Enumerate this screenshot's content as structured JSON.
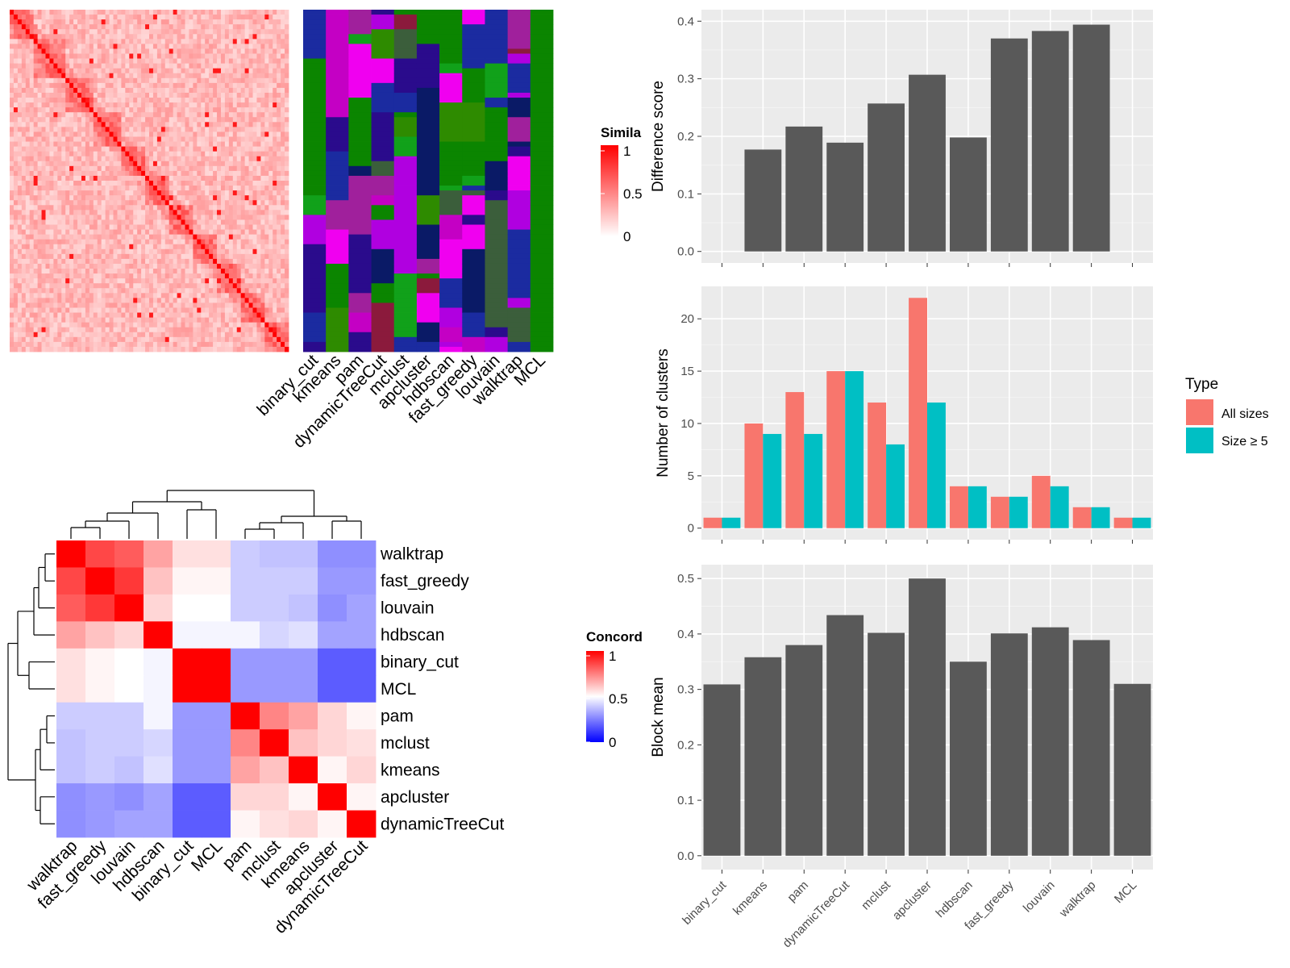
{
  "methods": [
    "binary_cut",
    "kmeans",
    "pam",
    "dynamicTreeCut",
    "mclust",
    "apcluster",
    "hdbscan",
    "fast_greedy",
    "louvain",
    "walktrap",
    "MCL"
  ],
  "heatmap_order": [
    "walktrap",
    "fast_greedy",
    "louvain",
    "hdbscan",
    "binary_cut",
    "MCL",
    "pam",
    "mclust",
    "kmeans",
    "apcluster",
    "dynamicTreeCut"
  ],
  "legends": {
    "similarity": {
      "title": "Simila",
      "ticks": [
        "1",
        "0.5",
        "0"
      ]
    },
    "concordance": {
      "title": "Concord",
      "ticks": [
        "1",
        "0.5",
        "0"
      ]
    },
    "type": {
      "title": "Type",
      "items": [
        "All sizes",
        "Size ≥ 5"
      ]
    }
  },
  "colors": {
    "bar_gray": "#595959",
    "all_sizes": "#F8766D",
    "size_ge5": "#00BFC4",
    "panel_bg": "#EBEBEB",
    "sim_high": "#FF0000",
    "sim_low": "#FFFFFF",
    "conc_low": "#0000FF"
  },
  "chart_data": [
    {
      "type": "heatmap",
      "title": "",
      "legend_title": "Similarity",
      "color_range": [
        0,
        1
      ],
      "note": "similarity matrix of terms with diagonal blocks, plus cluster membership columns per method"
    },
    {
      "type": "heatmap",
      "legend_title": "Concordance",
      "rows": [
        "walktrap",
        "fast_greedy",
        "louvain",
        "hdbscan",
        "binary_cut",
        "MCL",
        "pam",
        "mclust",
        "kmeans",
        "apcluster",
        "dynamicTreeCut"
      ],
      "cols": [
        "walktrap",
        "fast_greedy",
        "louvain",
        "hdbscan",
        "binary_cut",
        "MCL",
        "pam",
        "mclust",
        "kmeans",
        "apcluster",
        "dynamicTreeCut"
      ],
      "values": [
        [
          1.0,
          0.86,
          0.82,
          0.68,
          0.56,
          0.56,
          0.4,
          0.38,
          0.38,
          0.28,
          0.28
        ],
        [
          0.86,
          1.0,
          0.89,
          0.62,
          0.52,
          0.52,
          0.4,
          0.4,
          0.4,
          0.3,
          0.3
        ],
        [
          0.82,
          0.89,
          1.0,
          0.58,
          0.5,
          0.5,
          0.4,
          0.4,
          0.38,
          0.28,
          0.32
        ],
        [
          0.68,
          0.62,
          0.58,
          1.0,
          0.48,
          0.48,
          0.48,
          0.42,
          0.44,
          0.32,
          0.32
        ],
        [
          0.56,
          0.52,
          0.5,
          0.48,
          1.0,
          1.0,
          0.3,
          0.3,
          0.3,
          0.18,
          0.18
        ],
        [
          0.56,
          0.52,
          0.5,
          0.48,
          1.0,
          1.0,
          0.3,
          0.3,
          0.3,
          0.18,
          0.18
        ],
        [
          0.4,
          0.4,
          0.4,
          0.48,
          0.3,
          0.3,
          1.0,
          0.74,
          0.68,
          0.58,
          0.52
        ],
        [
          0.38,
          0.4,
          0.4,
          0.42,
          0.3,
          0.3,
          0.74,
          1.0,
          0.62,
          0.58,
          0.56
        ],
        [
          0.38,
          0.4,
          0.38,
          0.44,
          0.3,
          0.3,
          0.68,
          0.62,
          1.0,
          0.52,
          0.58
        ],
        [
          0.28,
          0.3,
          0.28,
          0.32,
          0.18,
          0.18,
          0.58,
          0.58,
          0.52,
          1.0,
          0.52
        ],
        [
          0.28,
          0.3,
          0.32,
          0.32,
          0.18,
          0.18,
          0.52,
          0.56,
          0.58,
          0.52,
          1.0
        ]
      ],
      "color_range": [
        0,
        1
      ]
    },
    {
      "type": "bar",
      "categories": [
        "binary_cut",
        "kmeans",
        "pam",
        "dynamicTreeCut",
        "mclust",
        "apcluster",
        "hdbscan",
        "fast_greedy",
        "louvain",
        "walktrap",
        "MCL"
      ],
      "values": [
        0.0,
        0.177,
        0.217,
        0.189,
        0.257,
        0.307,
        0.198,
        0.37,
        0.383,
        0.394,
        0.0
      ],
      "ylabel": "Difference score",
      "ylim": [
        -0.02,
        0.42
      ],
      "yticks": [
        0.0,
        0.1,
        0.2,
        0.3,
        0.4
      ],
      "yticklabels": [
        "0.0",
        "0.1",
        "0.2",
        "0.3",
        "0.4"
      ]
    },
    {
      "type": "bar",
      "categories": [
        "binary_cut",
        "kmeans",
        "pam",
        "dynamicTreeCut",
        "mclust",
        "apcluster",
        "hdbscan",
        "fast_greedy",
        "louvain",
        "walktrap",
        "MCL"
      ],
      "series": [
        {
          "name": "All sizes",
          "values": [
            1,
            10,
            13,
            15,
            12,
            22,
            4,
            3,
            5,
            2,
            1
          ]
        },
        {
          "name": "Size ≥ 5",
          "values": [
            1,
            9,
            9,
            15,
            8,
            12,
            4,
            3,
            4,
            2,
            1
          ]
        }
      ],
      "ylabel": "Number of clusters",
      "ylim": [
        -1.1,
        23.1
      ],
      "yticks": [
        0,
        5,
        10,
        15,
        20
      ],
      "yticklabels": [
        "0",
        "5",
        "10",
        "15",
        "20"
      ],
      "legend": "right"
    },
    {
      "type": "bar",
      "categories": [
        "binary_cut",
        "kmeans",
        "pam",
        "dynamicTreeCut",
        "mclust",
        "apcluster",
        "hdbscan",
        "fast_greedy",
        "louvain",
        "walktrap",
        "MCL"
      ],
      "values": [
        0.309,
        0.358,
        0.38,
        0.434,
        0.402,
        0.5,
        0.35,
        0.401,
        0.412,
        0.389,
        0.31
      ],
      "ylabel": "Block mean",
      "ylim": [
        -0.025,
        0.525
      ],
      "yticks": [
        0.0,
        0.1,
        0.2,
        0.3,
        0.4,
        0.5
      ],
      "yticklabels": [
        "0.0",
        "0.1",
        "0.2",
        "0.3",
        "0.4",
        "0.5"
      ]
    }
  ]
}
